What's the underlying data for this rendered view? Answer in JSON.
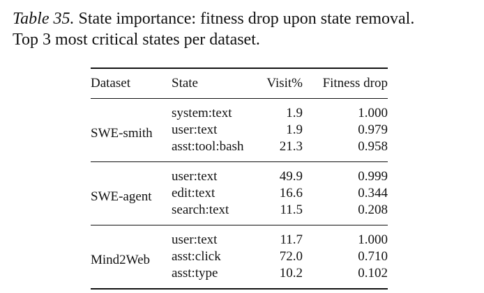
{
  "caption": {
    "label": "Table 35.",
    "text": " State importance: fitness drop upon state removal.",
    "line2": "Top 3 most critical states per dataset."
  },
  "table": {
    "headers": [
      "Dataset",
      "State",
      "Visit%",
      "Fitness drop"
    ],
    "groups": [
      {
        "dataset": "SWE-smith",
        "rows": [
          {
            "state": "system:text",
            "visit": "1.9",
            "fitness": "1.000"
          },
          {
            "state": "user:text",
            "visit": "1.9",
            "fitness": "0.979"
          },
          {
            "state": "asst:tool:bash",
            "visit": "21.3",
            "fitness": "0.958"
          }
        ]
      },
      {
        "dataset": "SWE-agent",
        "rows": [
          {
            "state": "user:text",
            "visit": "49.9",
            "fitness": "0.999"
          },
          {
            "state": "edit:text",
            "visit": "16.6",
            "fitness": "0.344"
          },
          {
            "state": "search:text",
            "visit": "11.5",
            "fitness": "0.208"
          }
        ]
      },
      {
        "dataset": "Mind2Web",
        "rows": [
          {
            "state": "user:text",
            "visit": "11.7",
            "fitness": "1.000"
          },
          {
            "state": "asst:click",
            "visit": "72.0",
            "fitness": "0.710"
          },
          {
            "state": "asst:type",
            "visit": "10.2",
            "fitness": "0.102"
          }
        ]
      }
    ]
  }
}
